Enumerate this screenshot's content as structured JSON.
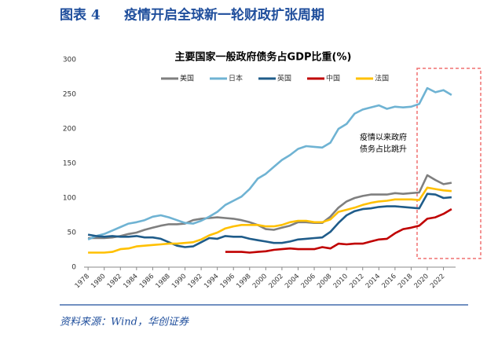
{
  "header": {
    "label": "图表 4",
    "title": "疫情开启全球新一轮财政扩张周期"
  },
  "source": "资料来源：Wind，华创证券",
  "chart_data": {
    "type": "line",
    "title": "主要国家一般政府债务占GDP比重(%)",
    "x": [
      1978,
      1979,
      1980,
      1981,
      1982,
      1983,
      1984,
      1985,
      1986,
      1987,
      1988,
      1989,
      1990,
      1991,
      1992,
      1993,
      1994,
      1995,
      1996,
      1997,
      1998,
      1999,
      2000,
      2001,
      2002,
      2003,
      2004,
      2005,
      2006,
      2007,
      2008,
      2009,
      2010,
      2011,
      2012,
      2013,
      2014,
      2015,
      2016,
      2017,
      2018,
      2019,
      2020,
      2021,
      2022,
      2023
    ],
    "xlim": [
      1977.5,
      2023.5
    ],
    "xticks": [
      1978,
      1980,
      1982,
      1984,
      1986,
      1988,
      1990,
      1992,
      1994,
      1996,
      1998,
      2000,
      2002,
      2004,
      2006,
      2008,
      2010,
      2012,
      2014,
      2016,
      2018,
      2020,
      2022
    ],
    "ylim": [
      0,
      300
    ],
    "yticks": [
      0,
      50,
      100,
      150,
      200,
      250,
      300
    ],
    "grid": false,
    "legend": "top",
    "annotation": [
      "疫情以来政府",
      "债务占比跳升"
    ],
    "series": [
      {
        "name": "美国",
        "color": "#7f7f7f",
        "values": [
          42,
          42,
          42,
          43,
          45,
          48,
          50,
          54,
          57,
          60,
          62,
          62,
          63,
          68,
          70,
          71,
          72,
          71,
          70,
          68,
          65,
          61,
          55,
          54,
          57,
          60,
          65,
          65,
          64,
          64,
          73,
          86,
          95,
          100,
          103,
          105,
          105,
          105,
          107,
          106,
          107,
          108,
          133,
          126,
          120,
          122
        ]
      },
      {
        "name": "日本",
        "color": "#6fb3d3",
        "values": [
          40,
          45,
          48,
          53,
          58,
          63,
          65,
          68,
          73,
          75,
          72,
          68,
          64,
          63,
          67,
          73,
          80,
          90,
          96,
          102,
          113,
          128,
          135,
          145,
          155,
          162,
          171,
          175,
          174,
          173,
          180,
          200,
          207,
          222,
          228,
          231,
          234,
          229,
          232,
          231,
          232,
          236,
          259,
          253,
          256,
          249
        ]
      },
      {
        "name": "英国",
        "color": "#1f5c8a",
        "values": [
          47,
          45,
          44,
          45,
          44,
          44,
          45,
          43,
          43,
          41,
          36,
          31,
          29,
          30,
          36,
          42,
          41,
          45,
          44,
          44,
          41,
          39,
          37,
          35,
          35,
          37,
          40,
          41,
          42,
          43,
          51,
          64,
          75,
          81,
          84,
          85,
          87,
          88,
          88,
          87,
          86,
          85,
          106,
          105,
          100,
          101
        ]
      },
      {
        "name": "中国",
        "color": "#c00000",
        "values": [
          null,
          null,
          null,
          null,
          null,
          null,
          null,
          null,
          null,
          null,
          null,
          null,
          null,
          null,
          null,
          null,
          null,
          22,
          22,
          22,
          21,
          22,
          23,
          25,
          26,
          27,
          26,
          26,
          26,
          29,
          27,
          34,
          33,
          34,
          34,
          37,
          40,
          41,
          49,
          55,
          57,
          60,
          70,
          72,
          77,
          84
        ]
      },
      {
        "name": "法国",
        "color": "#ffc000",
        "values": [
          21,
          21,
          21,
          22,
          26,
          27,
          30,
          31,
          32,
          33,
          34,
          34,
          35,
          36,
          40,
          46,
          50,
          56,
          59,
          61,
          61,
          61,
          59,
          59,
          61,
          65,
          67,
          67,
          65,
          65,
          69,
          80,
          83,
          86,
          90,
          93,
          95,
          96,
          98,
          98,
          98,
          97,
          115,
          113,
          111,
          110
        ]
      }
    ]
  }
}
